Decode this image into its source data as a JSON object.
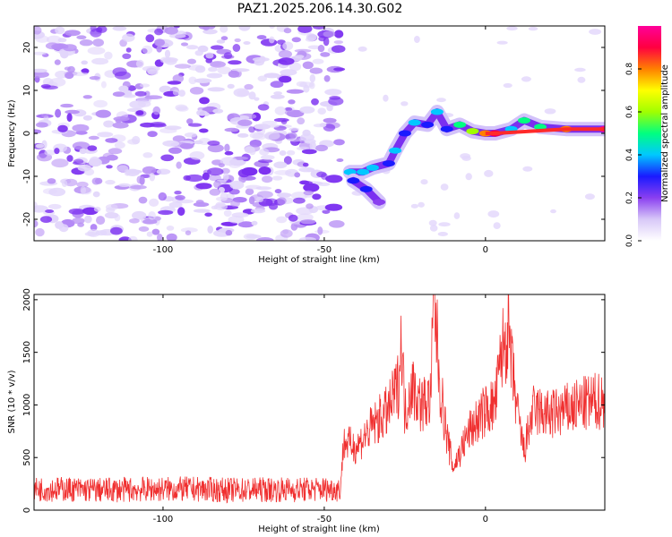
{
  "chart_data": [
    {
      "type": "heatmap",
      "title": "PAZ1.2025.206.14.30.G02",
      "xlabel": "Height of straight line (km)",
      "ylabel": "Frequency (Hz)",
      "xlim": [
        -140,
        37
      ],
      "ylim": [
        -25,
        25
      ],
      "xticks": [
        -100,
        -50,
        0
      ],
      "yticks": [
        -20,
        -10,
        0,
        10,
        20
      ],
      "colorbar": {
        "label": "Normalized spectral amplitude",
        "range": [
          0,
          1
        ],
        "ticks": [
          "0.0",
          "0.2",
          "0.4",
          "0.6",
          "0.8"
        ],
        "colors": [
          "#ffffff",
          "#d8c8f8",
          "#8a3ff0",
          "#1a1aff",
          "#00c8ff",
          "#00ff80",
          "#a0ff00",
          "#ffff00",
          "#ff8000",
          "#ff0040",
          "#ff0099"
        ]
      },
      "noise_region": {
        "x": [
          -140,
          -45
        ],
        "y": [
          -25,
          25
        ],
        "amplitude": [
          0.05,
          0.2
        ]
      },
      "ridge": {
        "points": [
          {
            "x": -42,
            "y": -9,
            "amp": 0.4
          },
          {
            "x": -38,
            "y": -9,
            "amp": 0.4
          },
          {
            "x": -35,
            "y": -8,
            "amp": 0.35
          },
          {
            "x": -30,
            "y": -7,
            "amp": 0.3
          },
          {
            "x": -28,
            "y": -4,
            "amp": 0.35
          },
          {
            "x": -25,
            "y": 0,
            "amp": 0.3
          },
          {
            "x": -22,
            "y": 2.5,
            "amp": 0.4
          },
          {
            "x": -18,
            "y": 2,
            "amp": 0.3
          },
          {
            "x": -15,
            "y": 5,
            "amp": 0.35
          },
          {
            "x": -12,
            "y": 1,
            "amp": 0.3
          },
          {
            "x": -8,
            "y": 2,
            "amp": 0.45
          },
          {
            "x": -4,
            "y": 0.5,
            "amp": 0.55
          },
          {
            "x": 0,
            "y": 0,
            "amp": 0.8
          },
          {
            "x": 3,
            "y": 0,
            "amp": 0.85
          },
          {
            "x": 8,
            "y": 1,
            "amp": 0.4
          },
          {
            "x": 12,
            "y": 3,
            "amp": 0.45
          },
          {
            "x": 17,
            "y": 1.5,
            "amp": 0.5
          },
          {
            "x": 25,
            "y": 1,
            "amp": 0.8
          },
          {
            "x": 37,
            "y": 1,
            "amp": 0.95
          }
        ],
        "branch": [
          {
            "x": -41,
            "y": -11,
            "amp": 0.25
          },
          {
            "x": -37,
            "y": -13,
            "amp": 0.3
          },
          {
            "x": -33,
            "y": -16,
            "amp": 0.2
          }
        ]
      }
    },
    {
      "type": "line",
      "xlabel": "Height of straight line (km)",
      "ylabel": "SNR (10 * v/v)",
      "xlim": [
        -140,
        37
      ],
      "ylim": [
        0,
        2050
      ],
      "xticks": [
        -100,
        -50,
        0
      ],
      "yticks": [
        0,
        500,
        1000,
        1500,
        2000
      ],
      "series_color": "#f03030",
      "series": [
        {
          "x": [
            -140,
            -130,
            -120,
            -110,
            -100,
            -90,
            -80,
            -70,
            -60,
            -50,
            -45,
            -44,
            -40,
            -35,
            -30,
            -27,
            -26,
            -25,
            -23,
            -20,
            -17,
            -16,
            -14,
            -12,
            -10,
            -5,
            0,
            3,
            5,
            7,
            8,
            10,
            12,
            14,
            15,
            20,
            25,
            30,
            37
          ],
          "y": [
            200,
            200,
            190,
            195,
            200,
            200,
            190,
            195,
            195,
            200,
            200,
            650,
            600,
            800,
            950,
            1200,
            1650,
            900,
            1200,
            1000,
            1050,
            2050,
            1150,
            700,
            400,
            750,
            950,
            1000,
            1500,
            1700,
            1400,
            900,
            550,
            850,
            950,
            900,
            950,
            1000,
            1050
          ]
        }
      ]
    }
  ]
}
